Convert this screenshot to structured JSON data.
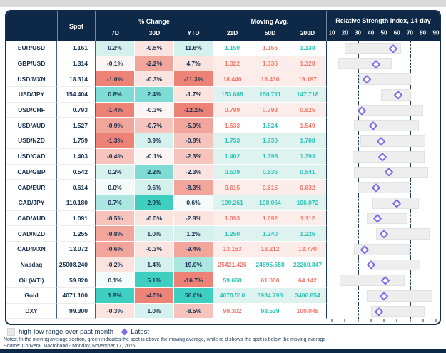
{
  "header": {
    "spot": "Spot",
    "pct_group": "% Change",
    "pct_cols": [
      "7D",
      "30D",
      "YTD"
    ],
    "ma_group": "Moving Avg.",
    "ma_cols": [
      "21D",
      "50D",
      "200D"
    ],
    "rsi_title": "Relative Strength Index, 14-day",
    "rsi_ticks": [
      10,
      20,
      30,
      40,
      50,
      60,
      70,
      80,
      90
    ]
  },
  "legend": {
    "range_label": "high-low range over past month",
    "latest_label": "Latest"
  },
  "footer": {
    "notes": "Notes: In the moving average section, green indicates the spot is above the moving average, while re d shows the spot is below  the moving average",
    "source": "Source: Convera, Macrobond - Monday, November 17, 2025"
  },
  "colors": {
    "header_bg": "#0e2947",
    "body_text": "#16304f",
    "teal_text": "#2cc5b8",
    "red_text": "#f4796c",
    "row_teal_bg": "#def2ef",
    "row_pink_bg": "#fcedea",
    "diamond": "#7e6be8",
    "range_bar": "#eeeeee",
    "pct_teal": [
      "#f4fbfa",
      "#d5f1ed",
      "#abe7e0",
      "#7fdcd4",
      "#3ecfc1"
    ],
    "pct_pink": [
      "#fdf5f3",
      "#fbe3df",
      "#f7c4bd",
      "#f2a59b",
      "#ed8276"
    ]
  },
  "chart_data": {
    "type": "table",
    "rsi_axis": {
      "min": 10,
      "max": 90,
      "lower_threshold": 30,
      "upper_threshold": 70
    },
    "columns": [
      "Instrument",
      "Spot",
      "7D %",
      "30D %",
      "YTD %",
      "MA 21D",
      "MA 50D",
      "MA 200D",
      "RSI low",
      "RSI high",
      "RSI latest"
    ],
    "rows": [
      {
        "name": "EUR/USD",
        "spot": "1.161",
        "pct": [
          {
            "v": "0.3%",
            "tone": "t1"
          },
          {
            "v": "-0.5%",
            "tone": "p1"
          },
          {
            "v": "11.6%",
            "tone": "t1"
          }
        ],
        "ma": [
          {
            "v": "1.159",
            "dir": "above"
          },
          {
            "v": "1.166",
            "dir": "below"
          },
          {
            "v": "1.138",
            "dir": "above"
          }
        ],
        "ma_bg": "mixed",
        "rsi": {
          "low": 20,
          "high": 63,
          "latest": 57
        }
      },
      {
        "name": "GBP/USD",
        "spot": "1.314",
        "pct": [
          {
            "v": "-0.1%",
            "tone": "p0"
          },
          {
            "v": "-2.2%",
            "tone": "p3"
          },
          {
            "v": "4.7%",
            "tone": "p1"
          }
        ],
        "ma": [
          {
            "v": "1.322",
            "dir": "below"
          },
          {
            "v": "1.336",
            "dir": "below"
          },
          {
            "v": "1.328",
            "dir": "below"
          }
        ],
        "ma_bg": "below",
        "rsi": {
          "low": 15,
          "high": 56,
          "latest": 44
        }
      },
      {
        "name": "USD/MXN",
        "spot": "18.314",
        "pct": [
          {
            "v": "-1.0%",
            "tone": "p4"
          },
          {
            "v": "-0.3%",
            "tone": "p1"
          },
          {
            "v": "-11.3%",
            "tone": "p4"
          }
        ],
        "ma": [
          {
            "v": "18.440",
            "dir": "below"
          },
          {
            "v": "18.430",
            "dir": "below"
          },
          {
            "v": "19.187",
            "dir": "below"
          }
        ],
        "ma_bg": "below",
        "rsi": {
          "low": 31,
          "high": 71,
          "latest": 37
        }
      },
      {
        "name": "USD/JPY",
        "spot": "154.404",
        "pct": [
          {
            "v": "0.8%",
            "tone": "t3"
          },
          {
            "v": "2.4%",
            "tone": "t3"
          },
          {
            "v": "-1.7%",
            "tone": "p1"
          }
        ],
        "ma": [
          {
            "v": "153.088",
            "dir": "above"
          },
          {
            "v": "150.711",
            "dir": "above"
          },
          {
            "v": "147.718",
            "dir": "above"
          }
        ],
        "ma_bg": "above",
        "rsi": {
          "low": 48,
          "high": 71,
          "latest": 61
        }
      },
      {
        "name": "USD/CHF",
        "spot": "0.793",
        "pct": [
          {
            "v": "-1.4%",
            "tone": "p4"
          },
          {
            "v": "-0.3%",
            "tone": "p0"
          },
          {
            "v": "-12.2%",
            "tone": "p4"
          }
        ],
        "ma": [
          {
            "v": "0.799",
            "dir": "below"
          },
          {
            "v": "0.798",
            "dir": "below"
          },
          {
            "v": "0.825",
            "dir": "below"
          }
        ],
        "ma_bg": "below",
        "rsi": {
          "low": 30,
          "high": 80,
          "latest": 33
        }
      },
      {
        "name": "USD/AUD",
        "spot": "1.527",
        "pct": [
          {
            "v": "-0.9%",
            "tone": "p3"
          },
          {
            "v": "-0.7%",
            "tone": "p2"
          },
          {
            "v": "-5.0%",
            "tone": "p3"
          }
        ],
        "ma": [
          {
            "v": "1.533",
            "dir": "below"
          },
          {
            "v": "1.524",
            "dir": "above"
          },
          {
            "v": "1.549",
            "dir": "below"
          }
        ],
        "ma_bg": "mixed",
        "rsi": {
          "low": 27,
          "high": 77,
          "latest": 42
        }
      },
      {
        "name": "USD/NZD",
        "spot": "1.759",
        "pct": [
          {
            "v": "-1.3%",
            "tone": "p4"
          },
          {
            "v": "0.9%",
            "tone": "t1"
          },
          {
            "v": "-0.8%",
            "tone": "p2"
          }
        ],
        "ma": [
          {
            "v": "1.753",
            "dir": "above"
          },
          {
            "v": "1.730",
            "dir": "above"
          },
          {
            "v": "1.708",
            "dir": "above"
          }
        ],
        "ma_bg": "above",
        "rsi": {
          "low": 32,
          "high": 82,
          "latest": 48
        }
      },
      {
        "name": "USD/CAD",
        "spot": "1.403",
        "pct": [
          {
            "v": "-0.4%",
            "tone": "p2"
          },
          {
            "v": "-0.1%",
            "tone": "p0"
          },
          {
            "v": "-2.3%",
            "tone": "p2"
          }
        ],
        "ma": [
          {
            "v": "1.402",
            "dir": "above"
          },
          {
            "v": "1.395",
            "dir": "above"
          },
          {
            "v": "1.393",
            "dir": "above"
          }
        ],
        "ma_bg": "above",
        "rsi": {
          "low": 26,
          "high": 81,
          "latest": 49
        }
      },
      {
        "name": "CAD/GBP",
        "spot": "0.542",
        "pct": [
          {
            "v": "0.2%",
            "tone": "t1"
          },
          {
            "v": "2.2%",
            "tone": "t3"
          },
          {
            "v": "-2.3%",
            "tone": "p1"
          }
        ],
        "ma": [
          {
            "v": "0.539",
            "dir": "above"
          },
          {
            "v": "0.536",
            "dir": "above"
          },
          {
            "v": "0.541",
            "dir": "above"
          }
        ],
        "ma_bg": "above",
        "rsi": {
          "low": 27,
          "high": 84,
          "latest": 54
        }
      },
      {
        "name": "CAD/EUR",
        "spot": "0.614",
        "pct": [
          {
            "v": "0.0%",
            "tone": "t0"
          },
          {
            "v": "0.6%",
            "tone": "t1"
          },
          {
            "v": "-8.3%",
            "tone": "p3"
          }
        ],
        "ma": [
          {
            "v": "0.615",
            "dir": "below"
          },
          {
            "v": "0.615",
            "dir": "below"
          },
          {
            "v": "0.632",
            "dir": "below"
          }
        ],
        "ma_bg": "below",
        "rsi": {
          "low": 30,
          "high": 70,
          "latest": 44
        }
      },
      {
        "name": "CAD/JPY",
        "spot": "110.180",
        "pct": [
          {
            "v": "0.7%",
            "tone": "t2"
          },
          {
            "v": "2.9%",
            "tone": "t4"
          },
          {
            "v": "0.6%",
            "tone": "t0"
          }
        ],
        "ma": [
          {
            "v": "109.261",
            "dir": "above"
          },
          {
            "v": "108.064",
            "dir": "above"
          },
          {
            "v": "106.072",
            "dir": "above"
          }
        ],
        "ma_bg": "above",
        "rsi": {
          "low": 41,
          "high": 77,
          "latest": 60
        }
      },
      {
        "name": "CAD/AUD",
        "spot": "1.091",
        "pct": [
          {
            "v": "-0.5%",
            "tone": "p2"
          },
          {
            "v": "-0.5%",
            "tone": "p1"
          },
          {
            "v": "-2.8%",
            "tone": "p1"
          }
        ],
        "ma": [
          {
            "v": "1.093",
            "dir": "below"
          },
          {
            "v": "1.092",
            "dir": "below"
          },
          {
            "v": "1.112",
            "dir": "below"
          }
        ],
        "ma_bg": "below",
        "rsi": {
          "low": 37,
          "high": 68,
          "latest": 45
        }
      },
      {
        "name": "CAD/NZD",
        "spot": "1.255",
        "pct": [
          {
            "v": "-0.8%",
            "tone": "p3"
          },
          {
            "v": "1.0%",
            "tone": "t1"
          },
          {
            "v": "1.2%",
            "tone": "t1"
          }
        ],
        "ma": [
          {
            "v": "1.250",
            "dir": "above"
          },
          {
            "v": "1.240",
            "dir": "above"
          },
          {
            "v": "1.226",
            "dir": "above"
          }
        ],
        "ma_bg": "above",
        "rsi": {
          "low": 44,
          "high": 85,
          "latest": 50
        }
      },
      {
        "name": "CAD/MXN",
        "spot": "13.072",
        "pct": [
          {
            "v": "-0.6%",
            "tone": "p3"
          },
          {
            "v": "-0.3%",
            "tone": "p1"
          },
          {
            "v": "-9.4%",
            "tone": "p3"
          }
        ],
        "ma": [
          {
            "v": "13.153",
            "dir": "below"
          },
          {
            "v": "13.212",
            "dir": "below"
          },
          {
            "v": "13.770",
            "dir": "below"
          }
        ],
        "ma_bg": "below",
        "rsi": {
          "low": 27,
          "high": 70,
          "latest": 35
        }
      },
      {
        "name": "Nasdaq",
        "spot": "25008.240",
        "pct": [
          {
            "v": "-0.2%",
            "tone": "p1"
          },
          {
            "v": "1.4%",
            "tone": "t1"
          },
          {
            "v": "19.0%",
            "tone": "t2"
          }
        ],
        "ma": [
          {
            "v": "25421.426",
            "dir": "below"
          },
          {
            "v": "24895.658",
            "dir": "above"
          },
          {
            "v": "22260.847",
            "dir": "above"
          }
        ],
        "ma_bg": "mixed",
        "rsi": {
          "low": 39,
          "high": 78,
          "latest": 40
        }
      },
      {
        "name": "Oil (WTI)",
        "spot": "59.820",
        "pct": [
          {
            "v": "0.1%",
            "tone": "t0"
          },
          {
            "v": "5.1%",
            "tone": "t4"
          },
          {
            "v": "-16.7%",
            "tone": "p4"
          }
        ],
        "ma": [
          {
            "v": "59.668",
            "dir": "above"
          },
          {
            "v": "61.000",
            "dir": "below"
          },
          {
            "v": "64.142",
            "dir": "below"
          }
        ],
        "ma_bg": "mixed",
        "rsi": {
          "low": 16,
          "high": 66,
          "latest": 51
        }
      },
      {
        "name": "Gold",
        "spot": "4071.100",
        "pct": [
          {
            "v": "1.9%",
            "tone": "t4"
          },
          {
            "v": "-4.5%",
            "tone": "p4"
          },
          {
            "v": "56.0%",
            "tone": "t4"
          }
        ],
        "ma": [
          {
            "v": "4070.510",
            "dir": "above"
          },
          {
            "v": "3934.798",
            "dir": "above"
          },
          {
            "v": "3406.854",
            "dir": "above"
          }
        ],
        "ma_bg": "above",
        "rsi": {
          "low": 37,
          "high": 87,
          "latest": 50
        }
      },
      {
        "name": "DXY",
        "spot": "99.300",
        "pct": [
          {
            "v": "-0.3%",
            "tone": "p1"
          },
          {
            "v": "1.0%",
            "tone": "t1"
          },
          {
            "v": "-8.5%",
            "tone": "p2"
          }
        ],
        "ma": [
          {
            "v": "99.302",
            "dir": "below"
          },
          {
            "v": "98.539",
            "dir": "above"
          },
          {
            "v": "100.048",
            "dir": "below"
          }
        ],
        "ma_bg": "mixed",
        "rsi": {
          "low": 40,
          "high": 81,
          "latest": 46
        }
      }
    ]
  }
}
